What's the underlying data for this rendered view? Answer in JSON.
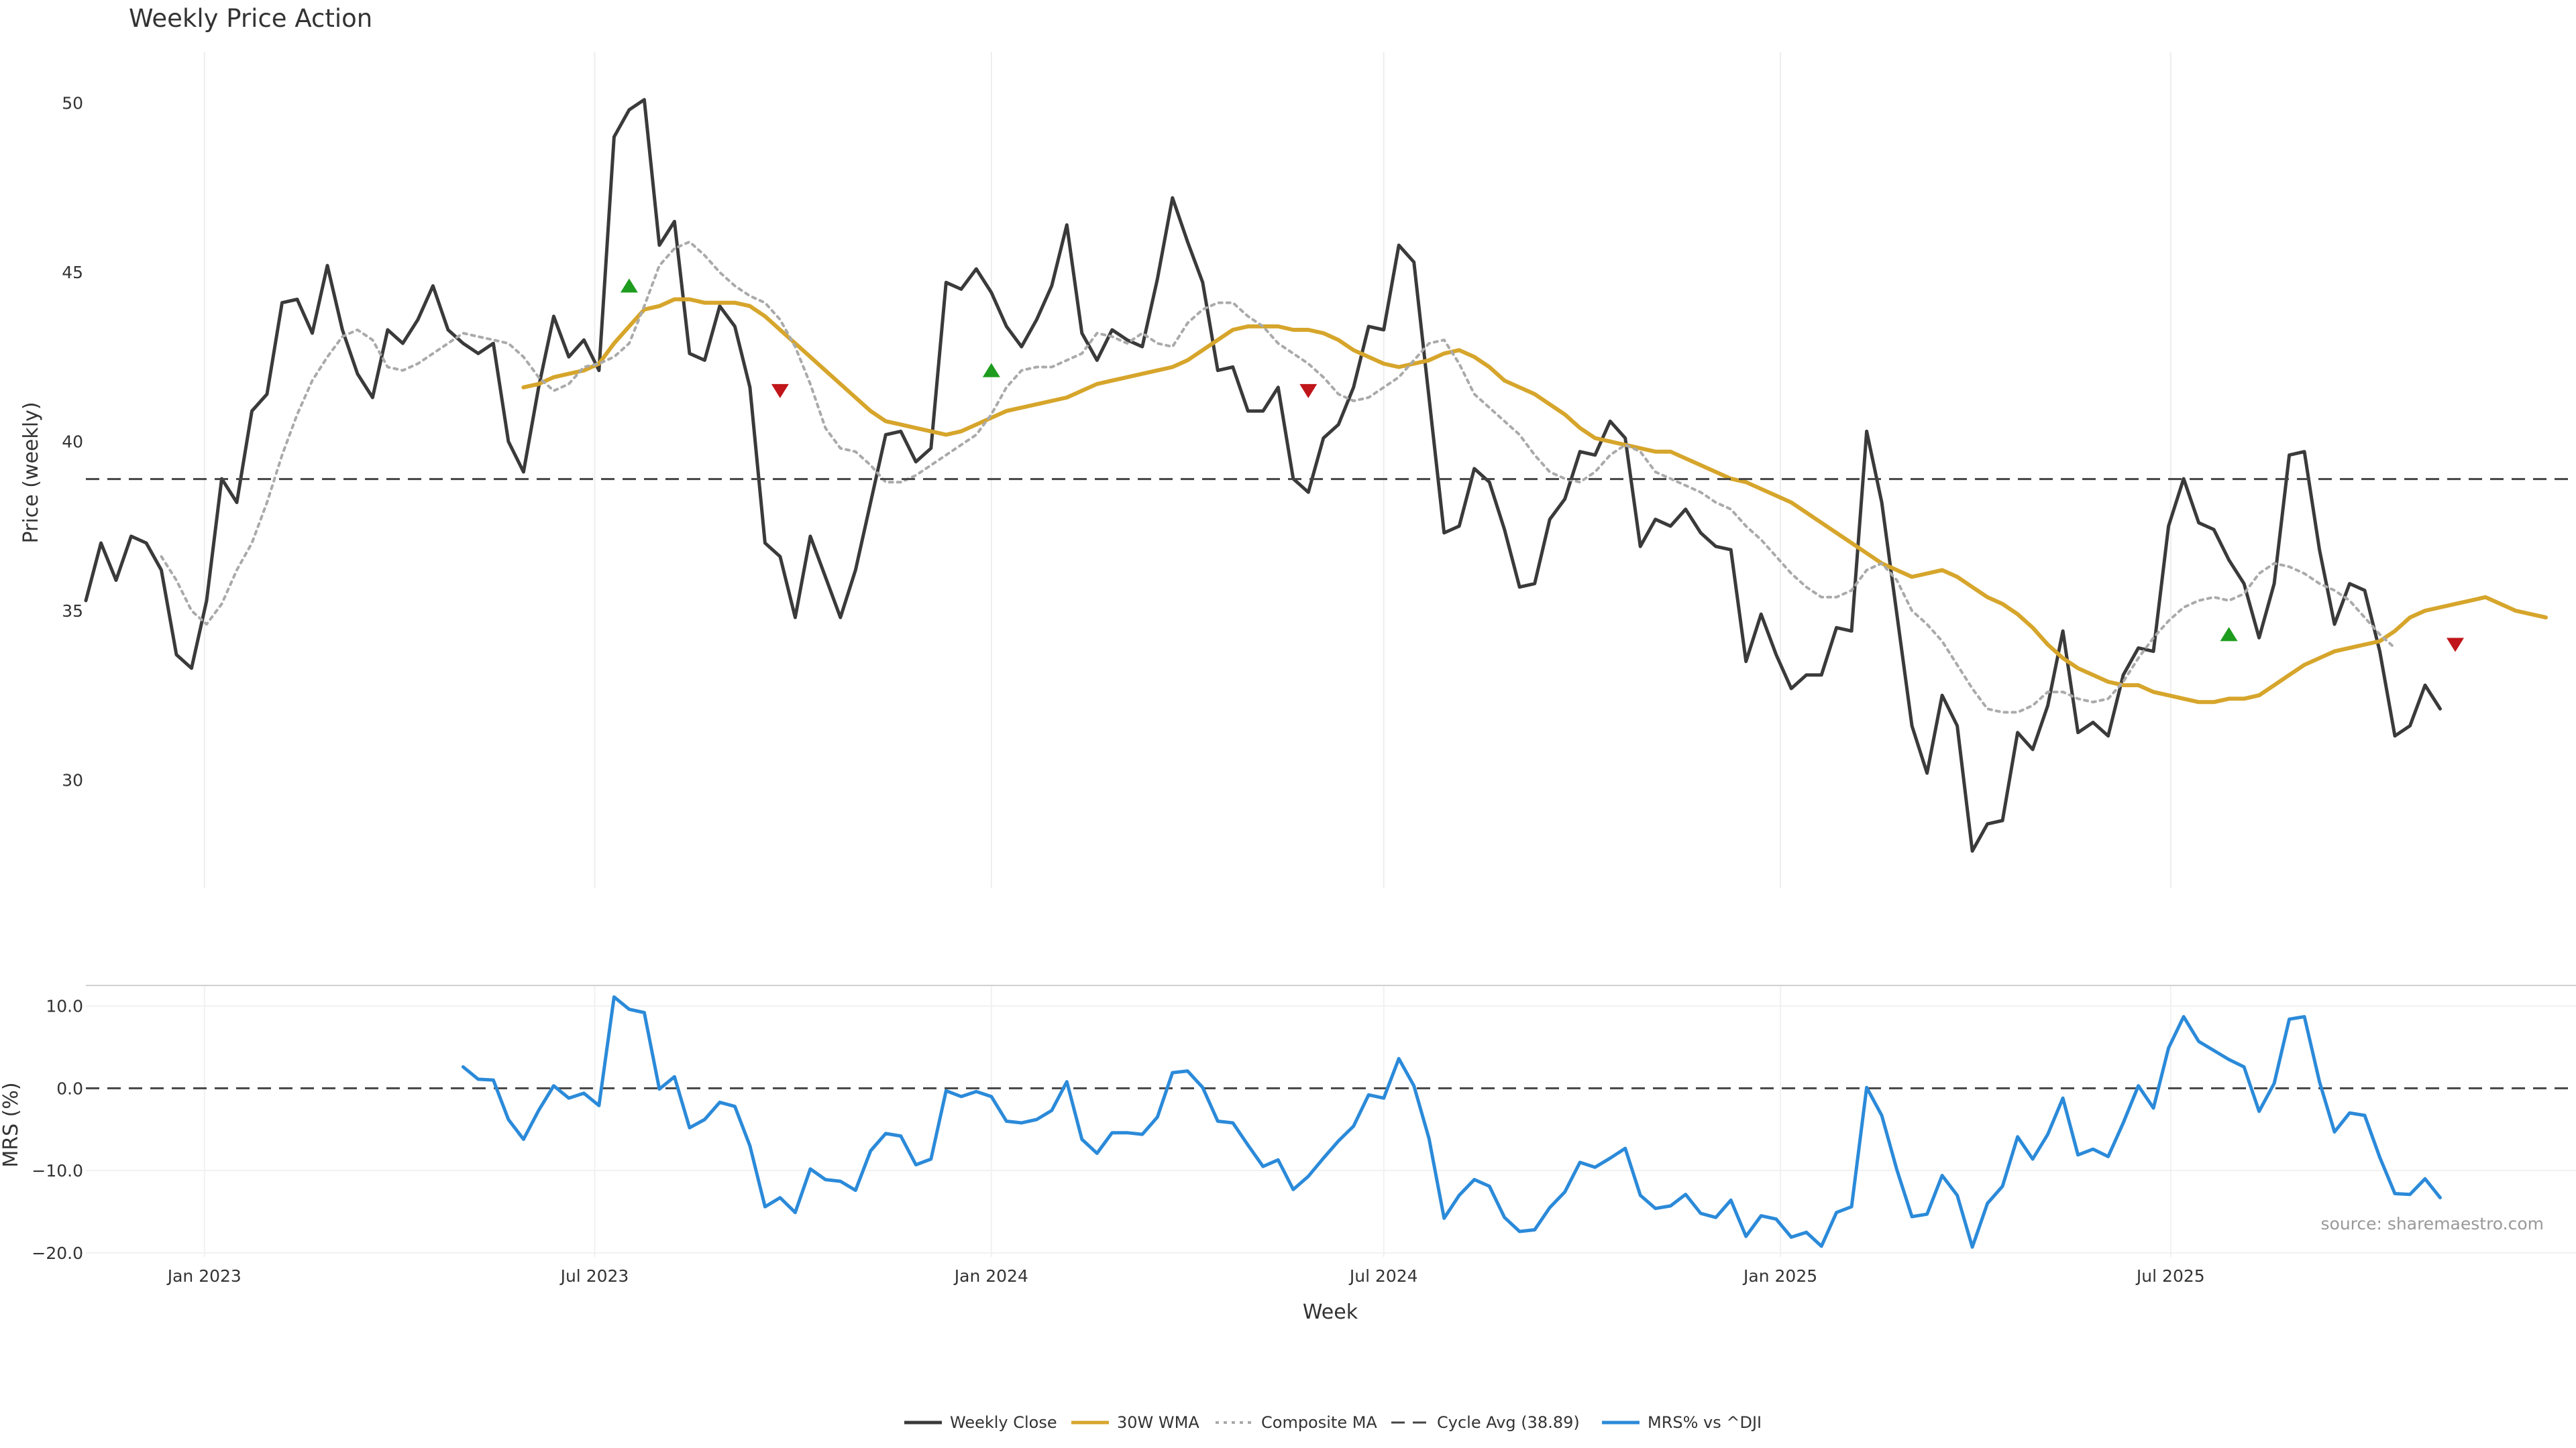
{
  "chart_data": {
    "type": "line",
    "title": "Weekly Price Action",
    "source": "source: sharemaestro.com",
    "xlabel": "Week",
    "x_ticks": [
      "Jan 2023",
      "Jul 2023",
      "Jan 2024",
      "Jul 2024",
      "Jan 2025",
      "Jul 2025"
    ],
    "x_range": [
      "2022-11-07",
      "2026-01-05"
    ],
    "date_start": "2022-11-07",
    "week_step_days": 7,
    "price_panel": {
      "ylabel": "Price (weekly)",
      "ylim": [
        26.8,
        51.5
      ],
      "y_ticks": [
        30,
        35,
        40,
        45,
        50
      ],
      "cycle_avg": 38.89,
      "series": [
        {
          "name": "Weekly Close",
          "color": "#3a3a3a",
          "style": "solid",
          "start_week": 0,
          "values": [
            35.3,
            37.0,
            35.9,
            37.2,
            37.0,
            36.2,
            33.7,
            33.3,
            35.3,
            38.9,
            38.2,
            40.9,
            41.4,
            44.1,
            44.2,
            43.2,
            45.2,
            43.3,
            42.0,
            41.3,
            43.3,
            42.9,
            43.6,
            44.6,
            43.3,
            42.9,
            42.6,
            42.9,
            40.0,
            39.1,
            41.6,
            43.7,
            42.5,
            43.0,
            42.1,
            49.0,
            49.8,
            50.1,
            45.8,
            46.5,
            42.6,
            42.4,
            44.0,
            43.4,
            41.6,
            37.0,
            36.6,
            34.8,
            37.2,
            36.0,
            34.8,
            36.2,
            38.2,
            40.2,
            40.3,
            39.4,
            39.8,
            44.7,
            44.5,
            45.1,
            44.4,
            43.4,
            42.8,
            43.6,
            44.6,
            46.4,
            43.2,
            42.4,
            43.3,
            43.0,
            42.8,
            44.8,
            47.2,
            45.9,
            44.7,
            42.1,
            42.2,
            40.9,
            40.9,
            41.6,
            38.9,
            38.5,
            40.1,
            40.5,
            41.6,
            43.4,
            43.3,
            45.8,
            45.3,
            41.3,
            37.3,
            37.5,
            39.2,
            38.8,
            37.4,
            35.7,
            35.8,
            37.7,
            38.3,
            39.7,
            39.6,
            40.6,
            40.1,
            36.9,
            37.7,
            37.5,
            38.0,
            37.3,
            36.9,
            36.8,
            33.5,
            34.9,
            33.7,
            32.7,
            33.1,
            33.1,
            34.5,
            34.4,
            40.3,
            38.2,
            34.9,
            31.6,
            30.2,
            32.5,
            31.6,
            27.9,
            28.7,
            28.8,
            31.4,
            30.9,
            32.2,
            34.4,
            31.4,
            31.7,
            31.3,
            33.1,
            33.9,
            33.8,
            37.5,
            38.9,
            37.6,
            37.4,
            36.5,
            35.8,
            34.2,
            35.8,
            39.6,
            39.7,
            36.8,
            34.6,
            35.8,
            35.6,
            33.8,
            31.3,
            31.6,
            32.8,
            32.1
          ]
        },
        {
          "name": "30W WMA",
          "color": "#d6a52b",
          "style": "solid",
          "start_week": 29,
          "values": [
            41.6,
            41.7,
            41.9,
            42.0,
            42.1,
            42.3,
            42.9,
            43.4,
            43.9,
            44.0,
            44.2,
            44.2,
            44.1,
            44.1,
            44.1,
            44.0,
            43.7,
            43.3,
            42.9,
            42.5,
            42.1,
            41.7,
            41.3,
            40.9,
            40.6,
            40.5,
            40.4,
            40.3,
            40.2,
            40.3,
            40.5,
            40.7,
            40.9,
            41.0,
            41.1,
            41.2,
            41.3,
            41.5,
            41.7,
            41.8,
            41.9,
            42.0,
            42.1,
            42.2,
            42.4,
            42.7,
            43.0,
            43.3,
            43.4,
            43.4,
            43.4,
            43.3,
            43.3,
            43.2,
            43.0,
            42.7,
            42.5,
            42.3,
            42.2,
            42.3,
            42.4,
            42.6,
            42.7,
            42.5,
            42.2,
            41.8,
            41.6,
            41.4,
            41.1,
            40.8,
            40.4,
            40.1,
            40.0,
            39.9,
            39.8,
            39.7,
            39.7,
            39.5,
            39.3,
            39.1,
            38.9,
            38.8,
            38.6,
            38.4,
            38.2,
            37.9,
            37.6,
            37.3,
            37.0,
            36.7,
            36.4,
            36.2,
            36.0,
            36.1,
            36.2,
            36.0,
            35.7,
            35.4,
            35.2,
            34.9,
            34.5,
            34.0,
            33.6,
            33.3,
            33.1,
            32.9,
            32.8,
            32.8,
            32.6,
            32.5,
            32.4,
            32.3,
            32.3,
            32.4,
            32.4,
            32.5,
            32.8,
            33.1,
            33.4,
            33.6,
            33.8,
            33.9,
            34.0,
            34.1,
            34.4,
            34.8,
            35.0,
            35.1,
            35.2,
            35.3,
            35.4,
            35.2,
            35.0,
            34.9,
            34.8
          ]
        },
        {
          "name": "Composite MA",
          "color": "#aaaaaa",
          "style": "dotted",
          "start_week": 5,
          "values": [
            36.6,
            35.9,
            35.0,
            34.6,
            35.2,
            36.2,
            37.0,
            38.2,
            39.6,
            40.8,
            41.8,
            42.5,
            43.1,
            43.3,
            43.0,
            42.2,
            42.1,
            42.3,
            42.6,
            42.9,
            43.2,
            43.1,
            43.0,
            42.9,
            42.5,
            41.9,
            41.5,
            41.7,
            42.2,
            42.3,
            42.5,
            42.9,
            44.0,
            45.2,
            45.7,
            45.9,
            45.5,
            45.0,
            44.6,
            44.3,
            44.1,
            43.6,
            42.8,
            41.7,
            40.4,
            39.8,
            39.7,
            39.3,
            38.8,
            38.8,
            39.0,
            39.3,
            39.6,
            39.9,
            40.2,
            40.8,
            41.6,
            42.1,
            42.2,
            42.2,
            42.4,
            42.6,
            43.2,
            43.1,
            42.9,
            43.2,
            42.9,
            42.8,
            43.5,
            43.9,
            44.1,
            44.1,
            43.7,
            43.4,
            42.9,
            42.6,
            42.3,
            41.9,
            41.4,
            41.2,
            41.3,
            41.6,
            41.9,
            42.4,
            42.9,
            43.0,
            42.3,
            41.4,
            41.0,
            40.6,
            40.2,
            39.6,
            39.1,
            38.9,
            38.8,
            39.1,
            39.6,
            39.9,
            39.7,
            39.1,
            38.9,
            38.7,
            38.5,
            38.2,
            38.0,
            37.5,
            37.1,
            36.6,
            36.1,
            35.7,
            35.4,
            35.4,
            35.6,
            36.2,
            36.4,
            35.9,
            35.0,
            34.6,
            34.1,
            33.4,
            32.7,
            32.1,
            32.0,
            32.0,
            32.2,
            32.6,
            32.6,
            32.4,
            32.3,
            32.4,
            32.9,
            33.6,
            34.2,
            34.7,
            35.1,
            35.3,
            35.4,
            35.3,
            35.5,
            36.1,
            36.4,
            36.3,
            36.1,
            35.8,
            35.6,
            35.3,
            34.8,
            34.3,
            33.9
          ]
        },
        {
          "name": "Cycle Avg (38.89)",
          "color": "#444444",
          "style": "dashed"
        }
      ],
      "signals_up": [
        [
          36,
          44.6
        ],
        [
          60,
          42.1
        ],
        [
          142,
          34.3
        ]
      ],
      "signals_down": [
        [
          46,
          41.5
        ],
        [
          81,
          41.5
        ],
        [
          157,
          34.0
        ]
      ],
      "signal_up_color": "#1e9c1e",
      "signal_down_color": "#c0151a"
    },
    "mrs_panel": {
      "ylabel": "MRS (%)",
      "ylim": [
        -20.5,
        12.5
      ],
      "y_ticks": [
        "10.0",
        "0.0",
        "−10.0",
        "−20.0"
      ],
      "y_tick_values": [
        10,
        0,
        -10,
        -20
      ],
      "series": [
        {
          "name": "MRS% vs ^DJI",
          "color": "#2b8ad9",
          "start_week": 25,
          "values": [
            2.6,
            1.1,
            1.0,
            -3.8,
            -6.2,
            -2.7,
            0.3,
            -1.2,
            -0.6,
            -2.1,
            11.1,
            9.6,
            9.2,
            -0.1,
            1.4,
            -4.8,
            -3.8,
            -1.7,
            -2.2,
            -7.0,
            -14.4,
            -13.3,
            -15.1,
            -9.8,
            -11.1,
            -11.3,
            -12.4,
            -7.6,
            -5.5,
            -5.8,
            -9.3,
            -8.6,
            -0.3,
            -1.0,
            -0.4,
            -1.0,
            -4.0,
            -4.2,
            -3.8,
            -2.7,
            0.8,
            -6.2,
            -7.9,
            -5.4,
            -5.4,
            -5.6,
            -3.5,
            1.9,
            2.1,
            0.1,
            -4.0,
            -4.2,
            -6.9,
            -9.5,
            -8.7,
            -12.3,
            -10.7,
            -8.5,
            -6.4,
            -4.6,
            -0.8,
            -1.2,
            3.6,
            0.3,
            -6.1,
            -15.8,
            -13.0,
            -11.1,
            -11.9,
            -15.7,
            -17.4,
            -17.2,
            -14.5,
            -12.6,
            -9.0,
            -9.6,
            -8.5,
            -7.3,
            -13.0,
            -14.6,
            -14.3,
            -12.9,
            -15.2,
            -15.7,
            -13.6,
            -18.0,
            -15.5,
            -15.9,
            -18.1,
            -17.5,
            -19.2,
            -15.1,
            -14.4,
            0.1,
            -3.3,
            -9.9,
            -15.6,
            -15.3,
            -10.6,
            -13.0,
            -19.3,
            -14.0,
            -11.9,
            -5.9,
            -8.6,
            -5.6,
            -1.2,
            -8.1,
            -7.4,
            -8.3,
            -4.2,
            0.3,
            -2.4,
            4.9,
            8.7,
            5.7,
            4.6,
            3.5,
            2.6,
            -2.8,
            0.6,
            8.4,
            8.7,
            0.8,
            -5.3,
            -3.0,
            -3.3,
            -8.4,
            -12.8,
            -12.9,
            -11.0,
            -13.3
          ]
        }
      ]
    },
    "legend": {
      "placement": "bottom-center",
      "items": [
        {
          "label": "Weekly Close",
          "color": "#3a3a3a",
          "style": "solid"
        },
        {
          "label": "30W WMA",
          "color": "#d6a52b",
          "style": "solid"
        },
        {
          "label": "Composite MA",
          "color": "#aaaaaa",
          "style": "dotted"
        },
        {
          "label": "Cycle Avg (38.89)",
          "color": "#444444",
          "style": "dashed"
        },
        {
          "label": "MRS% vs ^DJI",
          "color": "#2b8ad9",
          "style": "solid"
        }
      ]
    }
  }
}
